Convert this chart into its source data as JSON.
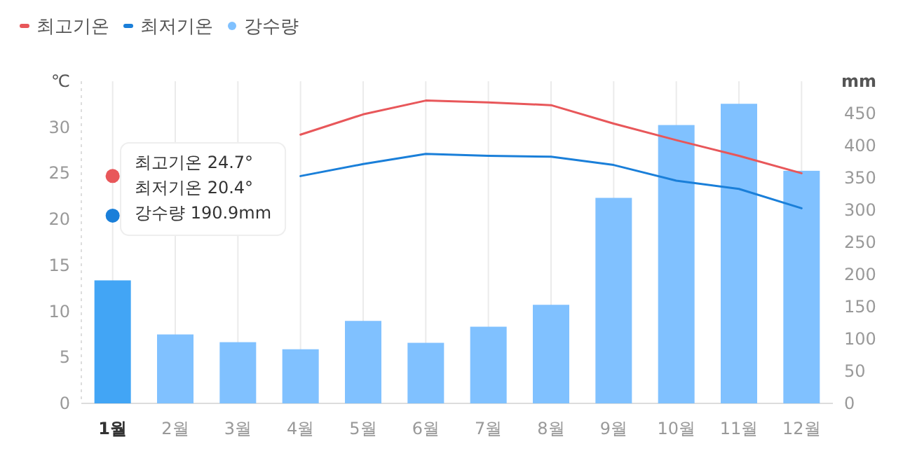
{
  "chart_data": {
    "type": "bar",
    "categories": [
      "1월",
      "2월",
      "3월",
      "4월",
      "5월",
      "6월",
      "7월",
      "8월",
      "9월",
      "10월",
      "11월",
      "12월"
    ],
    "ylabel": "℃",
    "y2label": "mm",
    "ylim": [
      0,
      35
    ],
    "yticks": [
      0,
      5,
      10,
      15,
      20,
      25,
      30
    ],
    "y2lim": [
      0,
      500
    ],
    "y2ticks": [
      0,
      50,
      100,
      150,
      200,
      250,
      300,
      350,
      400,
      450
    ],
    "grid": "x",
    "legend": "top left",
    "series": [
      {
        "name": "최고기온",
        "type": "line",
        "color": "#e8575a",
        "values": [
          24.7,
          null,
          null,
          29.2,
          31.4,
          32.9,
          32.7,
          32.4,
          30.4,
          28.6,
          26.9,
          25.0
        ]
      },
      {
        "name": "최저기온",
        "type": "line",
        "color": "#1a7fd9",
        "values": [
          20.4,
          null,
          null,
          24.7,
          26.0,
          27.1,
          26.9,
          26.8,
          25.9,
          24.2,
          23.3,
          21.2
        ]
      },
      {
        "name": "강수량",
        "axis": "y2",
        "color": "#80c1ff",
        "colors": [
          "#42a5f5",
          "#80c1ff",
          "#80c1ff",
          "#80c1ff",
          "#80c1ff",
          "#80c1ff",
          "#80c1ff",
          "#80c1ff",
          "#80c1ff",
          "#80c1ff",
          "#80c1ff",
          "#80c1ff"
        ],
        "values": [
          190.9,
          107,
          95,
          84,
          128,
          94,
          119,
          153,
          319,
          432,
          465,
          361
        ]
      }
    ],
    "annotations": [
      "최고기온 24.7°",
      "최저기온 20.4°",
      "강수량 190.9mm"
    ]
  }
}
